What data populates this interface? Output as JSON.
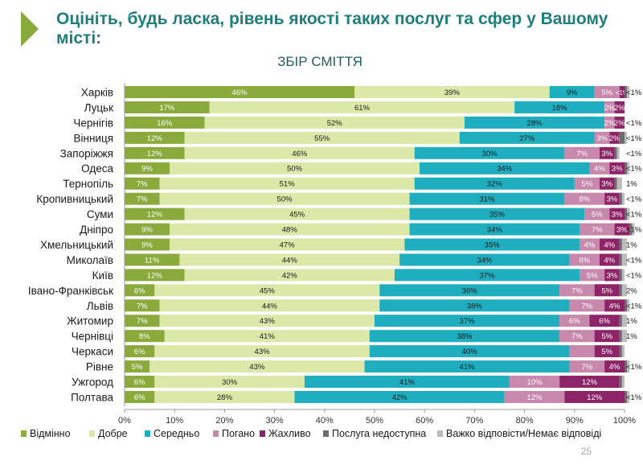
{
  "header": {
    "title": "Оцініть, будь ласка, рівень якості таких послуг та сфер у Вашому місті:"
  },
  "page_number": "25",
  "chart_data": {
    "type": "bar",
    "stacked": true,
    "orientation": "horizontal",
    "title": "ЗБІР СМІТТЯ",
    "xlim": [
      0,
      100
    ],
    "x_ticks": [
      "0%",
      "10%",
      "20%",
      "30%",
      "40%",
      "50%",
      "60%",
      "70%",
      "80%",
      "90%",
      "100%"
    ],
    "grid": false,
    "legend_position": "bottom",
    "categories": [
      "Харків",
      "Луцьк",
      "Чернігів",
      "Вінниця",
      "Запоріжжя",
      "Одеса",
      "Тернопіль",
      "Кропивницький",
      "Суми",
      "Дніпро",
      "Хмельницький",
      "Миколаїв",
      "Київ",
      "Івано-Франківськ",
      "Львів",
      "Житомир",
      "Чернівці",
      "Черкаси",
      "Рівне",
      "Ужгород",
      "Полтава"
    ],
    "series": [
      {
        "name": "Відмінно",
        "color": "#8aaa3c",
        "values": [
          46,
          17,
          16,
          12,
          12,
          9,
          7,
          7,
          12,
          9,
          9,
          11,
          12,
          6,
          7,
          7,
          8,
          6,
          5,
          6,
          6
        ],
        "labels": [
          "46%",
          "17%",
          "16%",
          "12%",
          "12%",
          "9%",
          "7%",
          "7%",
          "12%",
          "9%",
          "9%",
          "11%",
          "12%",
          "6%",
          "7%",
          "7%",
          "8%",
          "6%",
          "5%",
          "6%",
          "6%"
        ]
      },
      {
        "name": "Добре",
        "color": "#dbe8a8",
        "values": [
          39,
          61,
          52,
          55,
          46,
          50,
          51,
          50,
          45,
          48,
          47,
          44,
          42,
          45,
          44,
          43,
          41,
          43,
          43,
          30,
          28
        ],
        "labels": [
          "39%",
          "61%",
          "52%",
          "55%",
          "46%",
          "50%",
          "51%",
          "50%",
          "45%",
          "48%",
          "47%",
          "44%",
          "42%",
          "45%",
          "44%",
          "43%",
          "41%",
          "43%",
          "43%",
          "30%",
          "28%"
        ]
      },
      {
        "name": "Середньо",
        "color": "#1eaebf",
        "values": [
          9,
          18,
          28,
          27,
          30,
          34,
          32,
          31,
          35,
          34,
          35,
          34,
          37,
          36,
          38,
          37,
          38,
          40,
          41,
          41,
          42
        ],
        "labels": [
          "9%",
          "18%",
          "28%",
          "27%",
          "30%",
          "34%",
          "32%",
          "31%",
          "35%",
          "34%",
          "35%",
          "34%",
          "37%",
          "36%",
          "38%",
          "37%",
          "38%",
          "40%",
          "41%",
          "41%",
          "42%"
        ]
      },
      {
        "name": "Погано",
        "color": "#c788ac",
        "values": [
          5,
          2,
          2,
          3,
          7,
          4,
          5,
          8,
          5,
          7,
          4,
          6,
          5,
          7,
          7,
          6,
          7,
          5,
          7,
          10,
          12
        ],
        "labels": [
          "5%",
          "2%",
          "2%",
          "3%",
          "7%",
          "4%",
          "5%",
          "8%",
          "5%",
          "7%",
          "4%",
          "6%",
          "5%",
          "7%",
          "7%",
          "6%",
          "7%",
          "",
          "7%",
          "10%",
          "12%"
        ]
      },
      {
        "name": "Жахливо",
        "color": "#8e2468",
        "values": [
          1,
          2,
          2,
          2,
          3,
          3,
          3,
          3,
          3,
          3,
          4,
          4,
          3,
          5,
          4,
          6,
          5,
          5,
          4,
          12,
          12
        ],
        "labels": [
          "<1%",
          "2%",
          "2%",
          "2%",
          "3%",
          "3%",
          "3%",
          "3%",
          "3%",
          "3%",
          "4%",
          "4%",
          "3%",
          "5%",
          "4%",
          "6%",
          "5%",
          "5%",
          "4%",
          "12%",
          "12%"
        ]
      },
      {
        "name": "Послуга недоступна",
        "color": "#6c6c6c",
        "values": [
          0.5,
          0,
          0,
          1,
          0.5,
          0.5,
          0.5,
          0.5,
          0.5,
          0.5,
          0.5,
          0.5,
          0.5,
          0.5,
          0.5,
          0.5,
          0.5,
          0.5,
          0.5,
          0.5,
          0.5
        ],
        "labels": [
          "",
          "",
          "",
          "",
          "",
          "",
          "",
          "",
          "",
          "",
          "",
          "",
          "",
          "",
          "",
          "",
          "",
          "",
          "",
          "",
          ""
        ]
      },
      {
        "name": "Важко відповісти/Немає відповіді",
        "color": "#bcbcbc",
        "values": [
          0.5,
          0,
          0,
          0.5,
          0.5,
          0.5,
          1,
          0.5,
          0.5,
          0.5,
          1,
          1,
          0.5,
          1,
          0.5,
          1,
          1,
          0.5,
          0.5,
          0.5,
          0.5
        ],
        "labels": [
          "",
          "",
          "",
          "",
          "",
          "",
          "",
          "",
          "",
          "",
          "",
          "",
          "",
          "",
          "",
          "",
          "",
          "",
          "",
          "",
          ""
        ]
      }
    ],
    "end_labels": [
      "<1%",
      "",
      "<1%",
      "<1%",
      "<1%",
      "<1%",
      "1%",
      "<1%",
      "<1%",
      "<1%",
      "1%",
      "<1%",
      "<1%",
      "2%",
      "<1%",
      "1%",
      "1%",
      "",
      "<1%",
      "",
      "<1%"
    ]
  }
}
